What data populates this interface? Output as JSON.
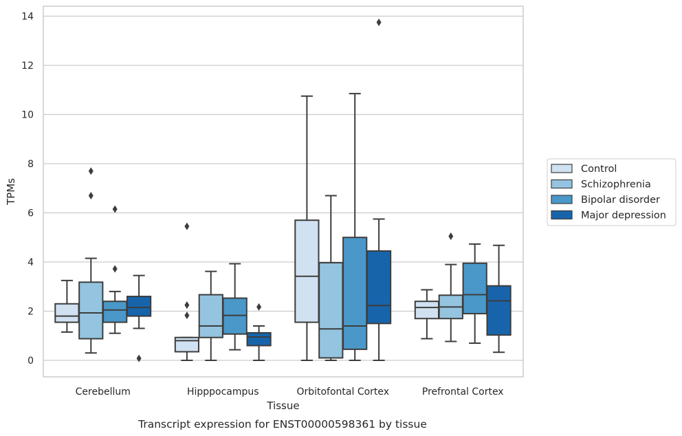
{
  "chart_data": {
    "type": "box",
    "caption": "Transcript expression for ENST00000598361 by tissue",
    "xlabel": "Tissue",
    "ylabel": "TPMs",
    "ylim": [
      -0.65,
      14.45
    ],
    "yticks": [
      0,
      2,
      4,
      6,
      8,
      10,
      12,
      14
    ],
    "grid": "horizontal",
    "legend_position": "right",
    "categories": [
      "Cerebellum",
      "Hipppocampus",
      "Orbitofontal Cortex",
      "Prefrontal Cortex"
    ],
    "series": [
      {
        "name": "Control",
        "color": "#d0e1f2",
        "boxes": [
          {
            "whisker_low": 1.15,
            "q1": 1.55,
            "median": 1.8,
            "q3": 2.3,
            "whisker_high": 3.25,
            "outliers": []
          },
          {
            "whisker_low": 0.0,
            "q1": 0.35,
            "median": 0.8,
            "q3": 0.93,
            "whisker_high": 0.93,
            "outliers": [
              5.45,
              2.25,
              1.83
            ]
          },
          {
            "whisker_low": 0.0,
            "q1": 1.55,
            "median": 3.42,
            "q3": 5.7,
            "whisker_high": 10.75,
            "outliers": []
          },
          {
            "whisker_low": 0.88,
            "q1": 1.7,
            "median": 2.15,
            "q3": 2.4,
            "whisker_high": 2.87,
            "outliers": []
          }
        ]
      },
      {
        "name": "Schizophrenia",
        "color": "#94c4df",
        "boxes": [
          {
            "whisker_low": 0.3,
            "q1": 0.88,
            "median": 1.93,
            "q3": 3.18,
            "whisker_high": 4.15,
            "outliers": [
              7.7,
              6.7
            ]
          },
          {
            "whisker_low": 0.0,
            "q1": 0.93,
            "median": 1.4,
            "q3": 2.67,
            "whisker_high": 3.62,
            "outliers": []
          },
          {
            "whisker_low": 0.0,
            "q1": 0.1,
            "median": 1.28,
            "q3": 3.97,
            "whisker_high": 6.7,
            "outliers": []
          },
          {
            "whisker_low": 0.77,
            "q1": 1.7,
            "median": 2.17,
            "q3": 2.65,
            "whisker_high": 3.9,
            "outliers": [
              5.05
            ]
          }
        ]
      },
      {
        "name": "Bipolar disorder",
        "color": "#4a98c9",
        "boxes": [
          {
            "whisker_low": 1.1,
            "q1": 1.55,
            "median": 2.05,
            "q3": 2.4,
            "whisker_high": 2.8,
            "outliers": [
              6.15,
              3.72
            ]
          },
          {
            "whisker_low": 0.43,
            "q1": 1.07,
            "median": 1.83,
            "q3": 2.53,
            "whisker_high": 3.93,
            "outliers": []
          },
          {
            "whisker_low": 0.0,
            "q1": 0.45,
            "median": 1.4,
            "q3": 5.0,
            "whisker_high": 10.85,
            "outliers": []
          },
          {
            "whisker_low": 0.7,
            "q1": 1.9,
            "median": 2.67,
            "q3": 3.95,
            "whisker_high": 4.73,
            "outliers": []
          }
        ]
      },
      {
        "name": "Major depression",
        "color": "#1764ab",
        "boxes": [
          {
            "whisker_low": 1.3,
            "q1": 1.8,
            "median": 2.15,
            "q3": 2.6,
            "whisker_high": 3.45,
            "outliers": [
              0.08
            ]
          },
          {
            "whisker_low": 0.0,
            "q1": 0.6,
            "median": 0.95,
            "q3": 1.12,
            "whisker_high": 1.4,
            "outliers": [
              2.17
            ]
          },
          {
            "whisker_low": 0.0,
            "q1": 1.5,
            "median": 2.23,
            "q3": 4.45,
            "whisker_high": 5.75,
            "outliers": [
              13.75
            ]
          },
          {
            "whisker_low": 0.33,
            "q1": 1.03,
            "median": 2.42,
            "q3": 3.03,
            "whisker_high": 4.68,
            "outliers": []
          }
        ]
      }
    ]
  }
}
